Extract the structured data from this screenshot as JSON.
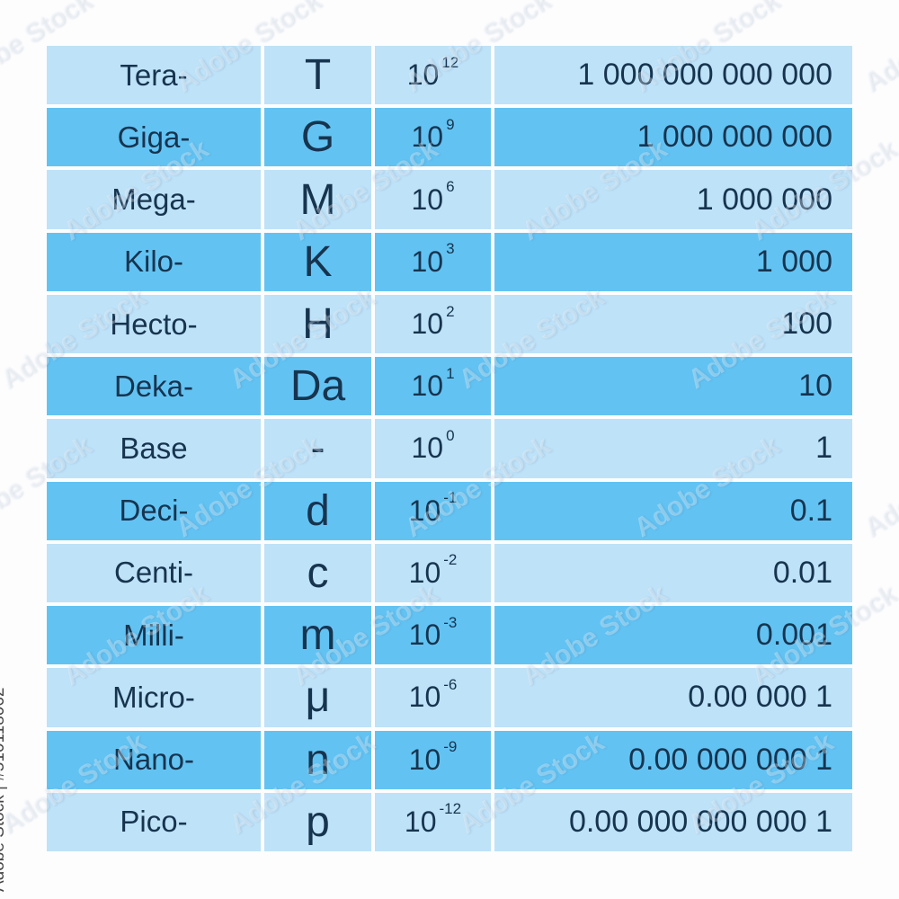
{
  "watermark": {
    "pattern_text": "Adobe Stock",
    "id_text": "Adobe Stock | #510118062"
  },
  "colors": {
    "row_light": "#bee2f8",
    "row_dark": "#62c3f3",
    "text": "#17344f",
    "background": "#ffffff"
  },
  "table": {
    "rows": [
      {
        "prefix": "Tera-",
        "symbol": "T",
        "base": "10",
        "exponent": "12",
        "value": "1 000 000 000 000"
      },
      {
        "prefix": "Giga-",
        "symbol": "G",
        "base": "10",
        "exponent": "9",
        "value": "1 000 000 000"
      },
      {
        "prefix": "Mega-",
        "symbol": "M",
        "base": "10",
        "exponent": "6",
        "value": "1 000 000"
      },
      {
        "prefix": "Kilo-",
        "symbol": "K",
        "base": "10",
        "exponent": "3",
        "value": "1 000"
      },
      {
        "prefix": "Hecto-",
        "symbol": "H",
        "base": "10",
        "exponent": "2",
        "value": "100"
      },
      {
        "prefix": "Deka-",
        "symbol": "Da",
        "base": "10",
        "exponent": "1",
        "value": "10"
      },
      {
        "prefix": "Base",
        "symbol": "-",
        "base": "10",
        "exponent": "0",
        "value": "1"
      },
      {
        "prefix": "Deci-",
        "symbol": "d",
        "base": "10",
        "exponent": "-1",
        "value": "0.1"
      },
      {
        "prefix": "Centi-",
        "symbol": "c",
        "base": "10",
        "exponent": "-2",
        "value": "0.01"
      },
      {
        "prefix": "Milli-",
        "symbol": "m",
        "base": "10",
        "exponent": "-3",
        "value": "0.001"
      },
      {
        "prefix": "Micro-",
        "symbol": "μ",
        "base": "10",
        "exponent": "-6",
        "value": "0.00 000 1"
      },
      {
        "prefix": "Nano-",
        "symbol": "n",
        "base": "10",
        "exponent": "-9",
        "value": "0.00 000 000 1"
      },
      {
        "prefix": "Pico-",
        "symbol": "p",
        "base": "10",
        "exponent": "-12",
        "value": "0.00 000 000 000 1"
      }
    ]
  },
  "chart_data": {
    "type": "table",
    "title": "",
    "columns": [
      "prefix",
      "symbol",
      "power_of_ten",
      "decimal_value"
    ],
    "rows": [
      [
        "Tera-",
        "T",
        "10^12",
        "1 000 000 000 000"
      ],
      [
        "Giga-",
        "G",
        "10^9",
        "1 000 000 000"
      ],
      [
        "Mega-",
        "M",
        "10^6",
        "1 000 000"
      ],
      [
        "Kilo-",
        "K",
        "10^3",
        "1 000"
      ],
      [
        "Hecto-",
        "H",
        "10^2",
        "100"
      ],
      [
        "Deka-",
        "Da",
        "10^1",
        "10"
      ],
      [
        "Base",
        "-",
        "10^0",
        "1"
      ],
      [
        "Deci-",
        "d",
        "10^-1",
        "0.1"
      ],
      [
        "Centi-",
        "c",
        "10^-2",
        "0.01"
      ],
      [
        "Milli-",
        "m",
        "10^-3",
        "0.001"
      ],
      [
        "Micro-",
        "μ",
        "10^-6",
        "0.00 000 1"
      ],
      [
        "Nano-",
        "n",
        "10^-9",
        "0.00 000 000 1"
      ],
      [
        "Pico-",
        "p",
        "10^-12",
        "0.00 000 000 000 1"
      ]
    ],
    "layout_hints": {
      "row_shading": "alternating light/dark blue starting light",
      "value_column_alignment": "right",
      "grid": "white 4px gaps between cells"
    }
  }
}
